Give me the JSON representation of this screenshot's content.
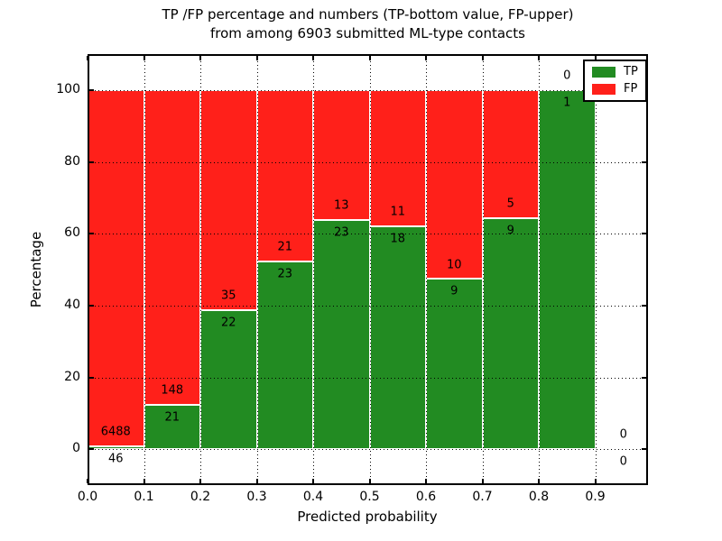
{
  "figure": {
    "background": "#ffffff",
    "title_line1": "TP /FP percentage and numbers (TP-bottom value, FP-upper)",
    "title_line2": "from among 6903 submitted ML-type contacts"
  },
  "chart_data": {
    "type": "bar",
    "stacked": true,
    "orientation": "vertical",
    "title": "TP /FP percentage and numbers (TP-bottom value, FP-upper) from among 6903 submitted ML-type contacts",
    "xlabel": "Predicted probability",
    "ylabel": "Percentage",
    "total_contacts": 6903,
    "xlim": [
      0.0,
      1.0
    ],
    "ylim": [
      -10,
      110
    ],
    "grid": "dotted black, on top of bars",
    "bin_width": 0.1,
    "categories": [
      "0.0-0.1",
      "0.1-0.2",
      "0.2-0.3",
      "0.3-0.4",
      "0.4-0.5",
      "0.5-0.6",
      "0.6-0.7",
      "0.7-0.8",
      "0.8-0.9",
      "0.9-1.0"
    ],
    "bin_starts": [
      0.0,
      0.1,
      0.2,
      0.3,
      0.4,
      0.5,
      0.6,
      0.7,
      0.8,
      0.9
    ],
    "series": [
      {
        "name": "TP",
        "color": "#228b22",
        "counts": [
          46,
          21,
          22,
          23,
          23,
          18,
          9,
          9,
          1,
          0
        ]
      },
      {
        "name": "FP",
        "color": "#ff201a",
        "counts": [
          6488,
          148,
          35,
          21,
          13,
          11,
          10,
          5,
          0,
          0
        ]
      }
    ],
    "tp_percent": [
      0.7,
      12.43,
      38.6,
      52.27,
      63.89,
      62.07,
      47.37,
      64.29,
      100.0,
      0.0
    ],
    "fp_percent": [
      99.3,
      87.57,
      61.4,
      47.73,
      36.11,
      37.93,
      52.63,
      35.71,
      0.0,
      0.0
    ],
    "xtick_values": [
      0.0,
      0.1,
      0.2,
      0.3,
      0.4,
      0.5,
      0.6,
      0.7,
      0.8,
      0.9
    ],
    "xtick_labels": [
      "0.0",
      "0.1",
      "0.2",
      "0.3",
      "0.4",
      "0.5",
      "0.6",
      "0.7",
      "0.8",
      "0.9"
    ],
    "ytick_values": [
      0,
      20,
      40,
      60,
      80,
      100
    ],
    "ytick_labels": [
      "0",
      "20",
      "40",
      "60",
      "80",
      "100"
    ],
    "legend_position": "upper right",
    "legend": [
      {
        "label": "TP",
        "color": "#228b22"
      },
      {
        "label": "FP",
        "color": "#ff201a"
      }
    ]
  }
}
